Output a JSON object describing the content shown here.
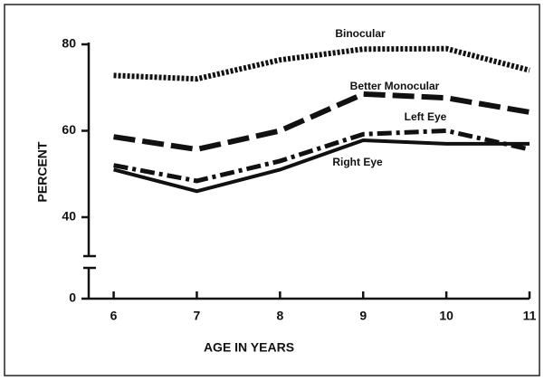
{
  "chart_data": {
    "type": "line",
    "x_label": "AGE IN YEARS",
    "y_label": "PERCENT",
    "x": [
      6,
      7,
      8,
      9,
      10,
      11
    ],
    "xlim": [
      5.7,
      11
    ],
    "xticks": [
      6,
      7,
      8,
      9,
      10,
      11
    ],
    "ylim": [
      0,
      80
    ],
    "yticks": [
      0,
      40,
      60,
      80
    ],
    "y_break": [
      0,
      30
    ],
    "series": [
      {
        "name": "Binocular",
        "color": "#111111",
        "style": "dotted",
        "values": [
          72.8,
          72,
          76.4,
          78.9,
          79,
          74
        ]
      },
      {
        "name": "Better Monocular",
        "color": "#111111",
        "style": "dashed",
        "values": [
          58.6,
          55.7,
          60,
          68.5,
          67.6,
          64.3
        ]
      },
      {
        "name": "Left Eye",
        "color": "#111111",
        "style": "dashdot",
        "values": [
          52,
          48.4,
          53,
          59.2,
          60,
          55.7
        ]
      },
      {
        "name": "Right Eye",
        "color": "#111111",
        "style": "solid",
        "values": [
          51,
          46,
          51,
          57.8,
          57,
          57
        ]
      }
    ]
  }
}
